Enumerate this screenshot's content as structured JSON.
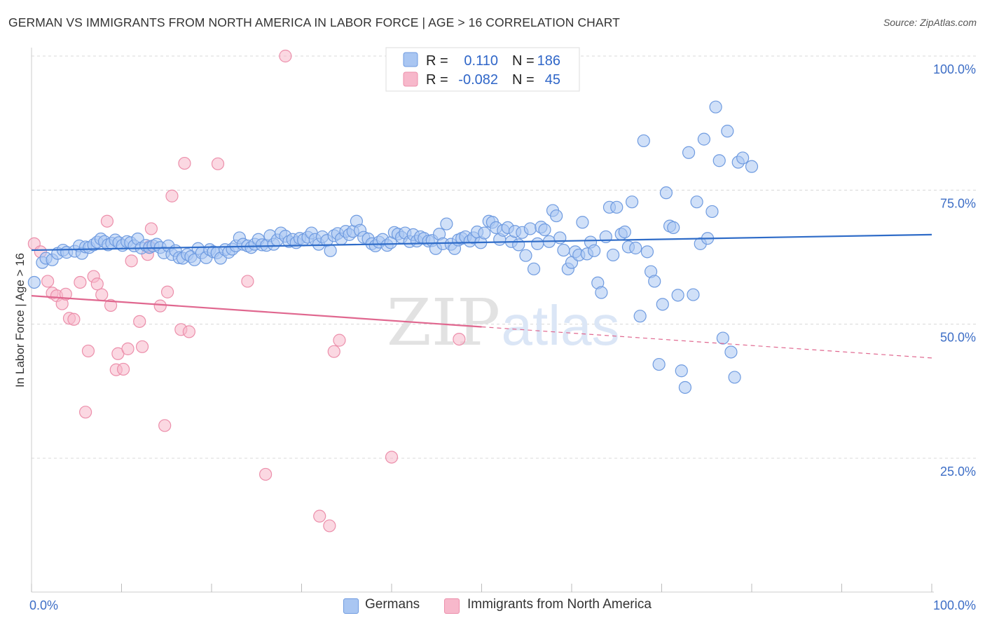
{
  "header": {
    "title": "GERMAN VS IMMIGRANTS FROM NORTH AMERICA IN LABOR FORCE | AGE > 16 CORRELATION CHART",
    "source": "Source: ZipAtlas.com"
  },
  "watermark": {
    "zip": "ZIP",
    "atlas": "atlas"
  },
  "legend_box": {
    "rows": [
      {
        "r_label": "R =",
        "r_value": "0.110",
        "n_label": "N =",
        "n_value": "186",
        "color": "#a9c6f2"
      },
      {
        "r_label": "R =",
        "r_value": "-0.082",
        "n_label": "N =",
        "n_value": "45",
        "color": "#f7b8cb"
      }
    ]
  },
  "bottom_legend": {
    "germans": "Germans",
    "immigrants": "Immigrants from North America"
  },
  "colors": {
    "blue_fill": "#a9c6f2",
    "blue_stroke": "#6f9be0",
    "blue_line": "#2f6cc8",
    "pink_fill": "#f7b8cb",
    "pink_stroke": "#ec8fab",
    "pink_line": "#e0678f",
    "grid": "#d8d8d8",
    "axis_text": "#3d6ec6"
  },
  "chart_data": {
    "type": "scatter",
    "xlabel": "",
    "ylabel": "In Labor Force | Age > 16",
    "xlim": [
      0,
      100
    ],
    "ylim": [
      0,
      105
    ],
    "x_tick_labels": [
      "0.0%",
      "100.0%"
    ],
    "y_ticks": [
      25,
      50,
      75,
      100
    ],
    "y_tick_labels": [
      "25.0%",
      "50.0%",
      "75.0%",
      "100.0%"
    ],
    "grid": true,
    "legend_placement": "top-center",
    "series": [
      {
        "name": "Germans",
        "trend": {
          "x0": 0,
          "y0": 63.8,
          "x1": 100,
          "y1": 66.7
        },
        "points": [
          [
            0.3,
            57.8
          ],
          [
            1.2,
            61.5
          ],
          [
            1.6,
            62.3
          ],
          [
            2.3,
            62.0
          ],
          [
            2.9,
            63.2
          ],
          [
            3.5,
            63.8
          ],
          [
            3.9,
            63.4
          ],
          [
            4.8,
            63.6
          ],
          [
            5.3,
            64.6
          ],
          [
            5.6,
            63.2
          ],
          [
            6.0,
            64.4
          ],
          [
            6.4,
            64.3
          ],
          [
            6.9,
            64.8
          ],
          [
            7.3,
            65.3
          ],
          [
            7.7,
            65.9
          ],
          [
            8.1,
            65.4
          ],
          [
            8.5,
            64.8
          ],
          [
            8.9,
            65.1
          ],
          [
            9.3,
            65.7
          ],
          [
            9.7,
            65.2
          ],
          [
            10.1,
            64.7
          ],
          [
            10.6,
            65.4
          ],
          [
            11.0,
            65.2
          ],
          [
            11.4,
            64.6
          ],
          [
            11.8,
            65.9
          ],
          [
            12.2,
            64.2
          ],
          [
            12.7,
            64.7
          ],
          [
            13.1,
            64.3
          ],
          [
            13.5,
            64.6
          ],
          [
            13.9,
            64.9
          ],
          [
            14.3,
            64.3
          ],
          [
            14.7,
            63.3
          ],
          [
            15.2,
            64.6
          ],
          [
            15.6,
            63.0
          ],
          [
            16.0,
            63.7
          ],
          [
            16.4,
            62.4
          ],
          [
            16.8,
            62.3
          ],
          [
            17.3,
            63.0
          ],
          [
            17.7,
            62.6
          ],
          [
            18.1,
            62.0
          ],
          [
            18.5,
            64.1
          ],
          [
            18.9,
            63.3
          ],
          [
            19.4,
            62.4
          ],
          [
            19.8,
            63.9
          ],
          [
            20.2,
            63.5
          ],
          [
            20.6,
            63.3
          ],
          [
            21.0,
            62.3
          ],
          [
            21.5,
            63.9
          ],
          [
            21.9,
            63.4
          ],
          [
            22.3,
            64.0
          ],
          [
            22.7,
            64.6
          ],
          [
            23.1,
            66.1
          ],
          [
            23.5,
            64.9
          ],
          [
            24.0,
            64.6
          ],
          [
            24.4,
            64.3
          ],
          [
            24.8,
            64.9
          ],
          [
            25.2,
            65.8
          ],
          [
            25.6,
            64.8
          ],
          [
            26.1,
            64.7
          ],
          [
            26.5,
            66.5
          ],
          [
            26.9,
            64.9
          ],
          [
            27.3,
            65.7
          ],
          [
            27.7,
            67.0
          ],
          [
            28.2,
            66.4
          ],
          [
            28.6,
            65.4
          ],
          [
            29.0,
            65.8
          ],
          [
            29.4,
            65.2
          ],
          [
            29.8,
            66.0
          ],
          [
            30.2,
            65.7
          ],
          [
            30.7,
            66.2
          ],
          [
            31.1,
            67.0
          ],
          [
            31.5,
            65.8
          ],
          [
            31.9,
            64.9
          ],
          [
            32.3,
            66.3
          ],
          [
            32.8,
            65.6
          ],
          [
            33.2,
            63.7
          ],
          [
            33.6,
            66.5
          ],
          [
            34.0,
            66.9
          ],
          [
            34.4,
            65.9
          ],
          [
            34.9,
            67.3
          ],
          [
            35.3,
            66.7
          ],
          [
            35.7,
            67.3
          ],
          [
            36.1,
            69.2
          ],
          [
            36.5,
            67.5
          ],
          [
            36.9,
            66.2
          ],
          [
            37.4,
            65.9
          ],
          [
            37.8,
            65.0
          ],
          [
            38.2,
            64.6
          ],
          [
            38.6,
            65.3
          ],
          [
            39.0,
            65.8
          ],
          [
            39.5,
            64.7
          ],
          [
            39.9,
            65.2
          ],
          [
            40.3,
            67.1
          ],
          [
            40.7,
            66.8
          ],
          [
            41.1,
            66.2
          ],
          [
            41.5,
            67.0
          ],
          [
            42.0,
            65.4
          ],
          [
            42.4,
            66.7
          ],
          [
            42.8,
            65.5
          ],
          [
            43.2,
            66.3
          ],
          [
            43.6,
            66.0
          ],
          [
            44.1,
            65.5
          ],
          [
            44.5,
            65.6
          ],
          [
            44.9,
            64.1
          ],
          [
            45.3,
            66.8
          ],
          [
            45.7,
            65.0
          ],
          [
            46.1,
            68.7
          ],
          [
            46.6,
            64.9
          ],
          [
            47.0,
            64.1
          ],
          [
            47.4,
            65.7
          ],
          [
            47.8,
            66.0
          ],
          [
            48.2,
            66.3
          ],
          [
            48.7,
            65.5
          ],
          [
            49.1,
            66.1
          ],
          [
            49.5,
            67.2
          ],
          [
            49.9,
            65.2
          ],
          [
            50.3,
            67.0
          ],
          [
            50.8,
            69.2
          ],
          [
            51.2,
            69.0
          ],
          [
            51.6,
            68.0
          ],
          [
            52.0,
            65.8
          ],
          [
            52.4,
            67.5
          ],
          [
            52.9,
            68.0
          ],
          [
            53.3,
            65.4
          ],
          [
            53.7,
            67.3
          ],
          [
            54.1,
            64.8
          ],
          [
            54.5,
            67.1
          ],
          [
            54.9,
            62.8
          ],
          [
            55.4,
            67.8
          ],
          [
            55.8,
            60.3
          ],
          [
            56.2,
            65.0
          ],
          [
            56.6,
            68.1
          ],
          [
            57.0,
            67.6
          ],
          [
            57.5,
            65.4
          ],
          [
            57.9,
            71.2
          ],
          [
            58.3,
            70.2
          ],
          [
            58.7,
            66.1
          ],
          [
            59.1,
            63.8
          ],
          [
            59.6,
            60.3
          ],
          [
            60.0,
            61.5
          ],
          [
            60.4,
            63.5
          ],
          [
            60.8,
            62.9
          ],
          [
            61.2,
            69.0
          ],
          [
            61.7,
            63.1
          ],
          [
            62.1,
            65.3
          ],
          [
            62.5,
            63.7
          ],
          [
            62.9,
            57.7
          ],
          [
            63.3,
            55.9
          ],
          [
            63.8,
            66.3
          ],
          [
            64.2,
            71.8
          ],
          [
            64.6,
            62.9
          ],
          [
            65.0,
            71.8
          ],
          [
            65.5,
            66.8
          ],
          [
            65.9,
            67.2
          ],
          [
            66.3,
            64.4
          ],
          [
            66.7,
            72.8
          ],
          [
            67.1,
            64.2
          ],
          [
            67.6,
            51.5
          ],
          [
            68.0,
            84.2
          ],
          [
            68.4,
            63.5
          ],
          [
            68.8,
            59.8
          ],
          [
            69.2,
            58.0
          ],
          [
            69.7,
            42.5
          ],
          [
            70.1,
            53.7
          ],
          [
            70.5,
            74.5
          ],
          [
            70.9,
            68.3
          ],
          [
            71.3,
            68.0
          ],
          [
            71.8,
            55.4
          ],
          [
            72.2,
            41.3
          ],
          [
            72.6,
            38.2
          ],
          [
            73.0,
            82.0
          ],
          [
            73.5,
            55.5
          ],
          [
            73.9,
            72.8
          ],
          [
            74.3,
            65.0
          ],
          [
            74.7,
            84.5
          ],
          [
            75.1,
            66.0
          ],
          [
            75.6,
            71.0
          ],
          [
            76.0,
            90.5
          ],
          [
            76.4,
            80.5
          ],
          [
            76.8,
            47.4
          ],
          [
            77.3,
            86.0
          ],
          [
            77.7,
            44.8
          ],
          [
            78.1,
            40.1
          ],
          [
            78.5,
            80.2
          ],
          [
            79.0,
            81.0
          ],
          [
            80.0,
            79.4
          ]
        ]
      },
      {
        "name": "Immigrants from North America",
        "trend": {
          "x0": 0,
          "y0": 55.3,
          "x1": 50,
          "y1": 49.5,
          "dash_x1": 100,
          "dash_y1": 43.7
        },
        "points": [
          [
            0.3,
            65.0
          ],
          [
            1.0,
            63.5
          ],
          [
            1.8,
            58.0
          ],
          [
            2.3,
            55.8
          ],
          [
            2.8,
            55.3
          ],
          [
            3.4,
            53.8
          ],
          [
            3.8,
            55.6
          ],
          [
            4.2,
            51.1
          ],
          [
            4.7,
            50.9
          ],
          [
            5.4,
            57.8
          ],
          [
            6.0,
            33.6
          ],
          [
            6.3,
            45.0
          ],
          [
            6.9,
            58.9
          ],
          [
            7.3,
            57.5
          ],
          [
            7.8,
            55.5
          ],
          [
            8.4,
            69.2
          ],
          [
            8.8,
            53.5
          ],
          [
            9.4,
            41.5
          ],
          [
            9.6,
            44.5
          ],
          [
            10.2,
            41.6
          ],
          [
            10.7,
            45.4
          ],
          [
            11.1,
            61.8
          ],
          [
            12.0,
            50.5
          ],
          [
            12.3,
            45.8
          ],
          [
            12.9,
            63.0
          ],
          [
            13.1,
            64.5
          ],
          [
            13.3,
            67.8
          ],
          [
            14.3,
            53.4
          ],
          [
            14.8,
            31.1
          ],
          [
            15.1,
            56.0
          ],
          [
            15.6,
            73.9
          ],
          [
            16.6,
            49.0
          ],
          [
            17.0,
            80.0
          ],
          [
            17.5,
            48.6
          ],
          [
            20.7,
            79.9
          ],
          [
            24.0,
            58.0
          ],
          [
            26.0,
            22.0
          ],
          [
            28.2,
            100.0
          ],
          [
            32.0,
            14.2
          ],
          [
            33.1,
            12.4
          ],
          [
            33.6,
            44.9
          ],
          [
            34.2,
            47.0
          ],
          [
            40.0,
            25.2
          ],
          [
            47.5,
            47.2
          ],
          [
            48.2,
            100.0
          ]
        ]
      }
    ]
  }
}
